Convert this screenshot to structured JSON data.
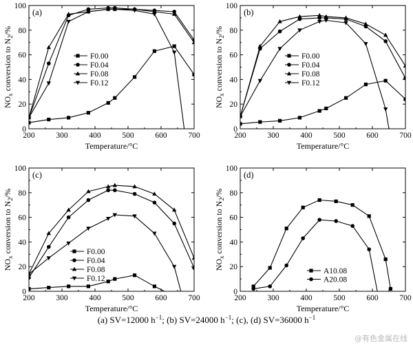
{
  "caption_parts": [
    "(a) SV=12000 h",
    "−1",
    "; (b) SV=24000 h",
    "−1",
    "; (c), (d) SV=36000 h",
    "−1"
  ],
  "watermark": "@有色金属在线",
  "chart_data": [
    {
      "type": "line",
      "panel_label": "(a)",
      "xlabel": "Temperature/°C",
      "ylabel_main": "NO",
      "ylabel_sub": "x",
      "ylabel_rest": " conversion to N",
      "ylabel_sub2": "2",
      "ylabel_end": "/%",
      "xlim": [
        200,
        700
      ],
      "ylim": [
        0,
        100
      ],
      "xticks": [
        200,
        300,
        400,
        500,
        600,
        700
      ],
      "yticks": [
        0,
        20,
        40,
        60,
        80,
        100
      ],
      "legend_position": "center-left",
      "series": [
        {
          "name": "F0.00",
          "marker": "square",
          "x": [
            200,
            260,
            320,
            380,
            440,
            460,
            520,
            580,
            640,
            700
          ],
          "y": [
            5,
            7.5,
            9,
            13,
            21,
            25,
            42,
            63,
            67,
            44
          ]
        },
        {
          "name": "F0.04",
          "marker": "circle",
          "x": [
            200,
            260,
            320,
            380,
            440,
            460,
            520,
            580,
            640,
            700
          ],
          "y": [
            9,
            53,
            92,
            97,
            98,
            98,
            97,
            96,
            95,
            72
          ]
        },
        {
          "name": "F0.08",
          "marker": "triangle-up",
          "x": [
            200,
            260,
            320,
            380,
            440,
            460,
            520,
            580,
            640,
            700
          ],
          "y": [
            9,
            66,
            93,
            95,
            97,
            97,
            97,
            95,
            93,
            70
          ]
        },
        {
          "name": "F0.12",
          "marker": "triangle-down",
          "x": [
            200,
            260,
            320,
            380,
            440,
            460,
            520,
            580,
            640,
            670
          ],
          "y": [
            9,
            37,
            87,
            95,
            97,
            97,
            96,
            93,
            62,
            0
          ]
        }
      ]
    },
    {
      "type": "line",
      "panel_label": "(b)",
      "xlabel": "Temperature/°C",
      "ylabel_main": "NO",
      "ylabel_sub": "x",
      "ylabel_rest": " conversion to N",
      "ylabel_sub2": "2",
      "ylabel_end": "/%",
      "xlim": [
        200,
        700
      ],
      "ylim": [
        0,
        100
      ],
      "xticks": [
        200,
        300,
        400,
        500,
        600,
        700
      ],
      "yticks": [
        0,
        20,
        40,
        60,
        80,
        100
      ],
      "legend_position": "center-left",
      "series": [
        {
          "name": "F0.00",
          "marker": "square",
          "x": [
            200,
            260,
            320,
            380,
            440,
            460,
            520,
            580,
            640,
            700
          ],
          "y": [
            4,
            5.5,
            6.5,
            9,
            14.5,
            16.5,
            25,
            36,
            39,
            24
          ]
        },
        {
          "name": "F0.04",
          "marker": "circle",
          "x": [
            200,
            260,
            320,
            380,
            440,
            460,
            520,
            580,
            640,
            700
          ],
          "y": [
            10,
            65,
            79,
            89,
            90,
            90,
            89,
            83,
            71,
            41
          ]
        },
        {
          "name": "F0.08",
          "marker": "triangle-up",
          "x": [
            200,
            260,
            320,
            380,
            440,
            460,
            520,
            580,
            640,
            700
          ],
          "y": [
            10,
            67,
            87,
            91,
            92,
            91,
            90,
            85,
            76,
            51
          ]
        },
        {
          "name": "F0.12",
          "marker": "triangle-down",
          "x": [
            200,
            260,
            320,
            380,
            440,
            460,
            520,
            580,
            640,
            650
          ],
          "y": [
            10,
            39,
            65,
            80,
            87,
            88,
            86,
            69,
            16,
            0
          ]
        }
      ]
    },
    {
      "type": "line",
      "panel_label": "(c)",
      "xlabel": "Temperature/°C",
      "ylabel_main": "NO",
      "ylabel_sub": "x",
      "ylabel_rest": " conversion to N",
      "ylabel_sub2": "2",
      "ylabel_end": "/%",
      "xlim": [
        200,
        700
      ],
      "ylim": [
        0,
        100
      ],
      "xticks": [
        200,
        300,
        400,
        500,
        600,
        700
      ],
      "yticks": [
        0,
        20,
        40,
        60,
        80,
        100
      ],
      "legend_position": "bottom-center",
      "series": [
        {
          "name": "F0.00",
          "marker": "square",
          "x": [
            200,
            260,
            320,
            380,
            440,
            460,
            520,
            580,
            610
          ],
          "y": [
            2,
            3,
            4,
            4,
            8,
            10,
            13,
            4,
            0
          ]
        },
        {
          "name": "F0.04",
          "marker": "circle",
          "x": [
            200,
            260,
            320,
            380,
            440,
            460,
            520,
            580,
            640,
            700
          ],
          "y": [
            11,
            36,
            60,
            74,
            82,
            82,
            79,
            72,
            55,
            19
          ]
        },
        {
          "name": "F0.08",
          "marker": "triangle-up",
          "x": [
            200,
            260,
            320,
            380,
            440,
            460,
            520,
            580,
            640,
            700
          ],
          "y": [
            14,
            47,
            66,
            81,
            85,
            86,
            85,
            79,
            66,
            27
          ]
        },
        {
          "name": "F0.12",
          "marker": "triangle-down",
          "x": [
            200,
            260,
            320,
            380,
            440,
            460,
            520,
            580,
            640,
            660
          ],
          "y": [
            14,
            27,
            39,
            51,
            59,
            62,
            61,
            47,
            20,
            0
          ]
        }
      ]
    },
    {
      "type": "line",
      "panel_label": "(d)",
      "xlabel": "Temperature/°C",
      "ylabel_main": "NO",
      "ylabel_sub": "x",
      "ylabel_rest": " conversion to N",
      "ylabel_sub2": "2",
      "ylabel_end": "/%",
      "xlim": [
        200,
        700
      ],
      "ylim": [
        0,
        100
      ],
      "xticks": [
        200,
        300,
        400,
        500,
        600,
        700
      ],
      "yticks": [
        0,
        20,
        40,
        60,
        80,
        100
      ],
      "legend_position": "bottom-left",
      "series": [
        {
          "name": "A10.08",
          "marker": "square",
          "x": [
            240,
            290,
            340,
            390,
            440,
            490,
            540,
            590,
            640,
            655
          ],
          "y": [
            4,
            19,
            51,
            68,
            74,
            73,
            70,
            61,
            26,
            2
          ]
        },
        {
          "name": "A20.08",
          "marker": "circle",
          "x": [
            240,
            290,
            340,
            390,
            440,
            490,
            540,
            590,
            615
          ],
          "y": [
            2,
            4,
            21,
            43,
            58,
            57,
            53,
            34,
            0
          ]
        }
      ]
    }
  ]
}
